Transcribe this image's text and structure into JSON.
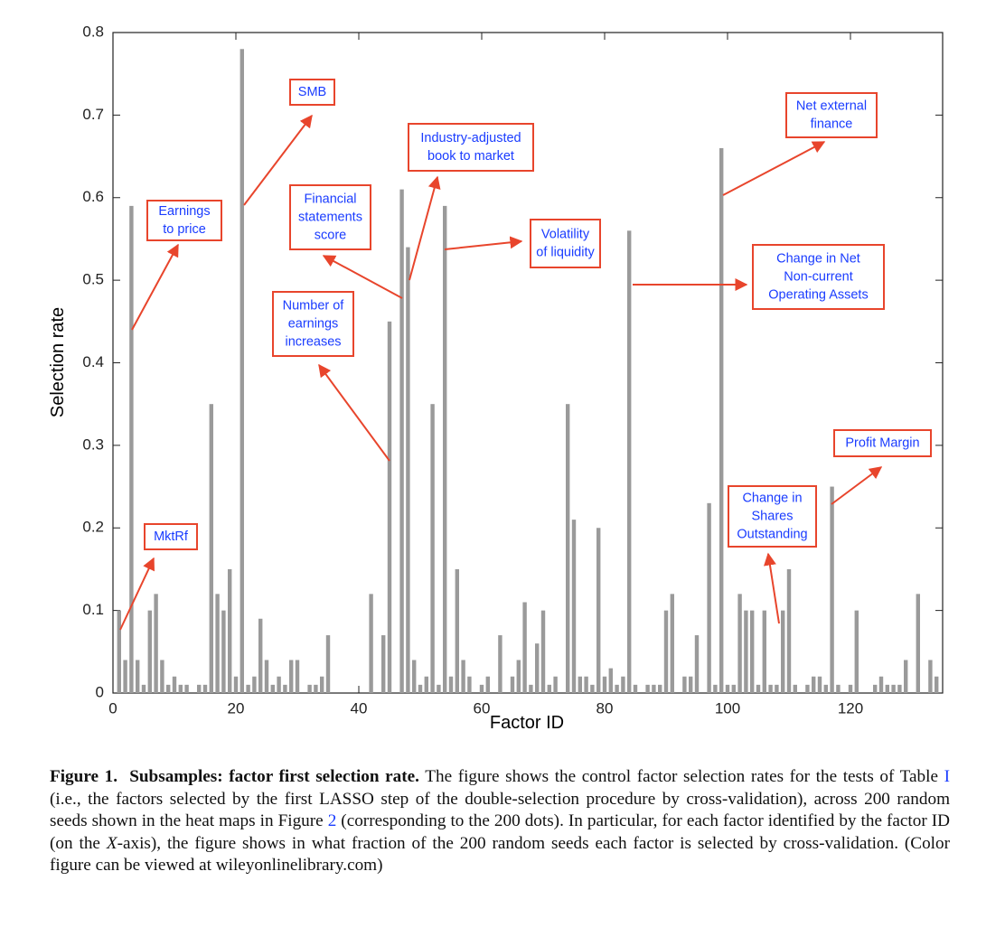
{
  "chart_data": {
    "type": "bar",
    "xlabel": "Factor ID",
    "ylabel": "Selection rate",
    "x": [
      1,
      2,
      3,
      4,
      5,
      6,
      7,
      8,
      9,
      10,
      11,
      12,
      13,
      14,
      15,
      16,
      17,
      18,
      19,
      20,
      21,
      22,
      23,
      24,
      25,
      26,
      27,
      28,
      29,
      30,
      31,
      32,
      33,
      34,
      35,
      36,
      37,
      38,
      39,
      40,
      41,
      42,
      43,
      44,
      45,
      46,
      47,
      48,
      49,
      50,
      51,
      52,
      53,
      54,
      55,
      56,
      57,
      58,
      59,
      60,
      61,
      62,
      63,
      64,
      65,
      66,
      67,
      68,
      69,
      70,
      71,
      72,
      73,
      74,
      75,
      76,
      77,
      78,
      79,
      80,
      81,
      82,
      83,
      84,
      85,
      86,
      87,
      88,
      89,
      90,
      91,
      92,
      93,
      94,
      95,
      96,
      97,
      98,
      99,
      100,
      101,
      102,
      103,
      104,
      105,
      106,
      107,
      108,
      109,
      110,
      111,
      112,
      113,
      114,
      115,
      116,
      117,
      118,
      119,
      120,
      121,
      122,
      123,
      124,
      125,
      126,
      127,
      128,
      129,
      130,
      131,
      132,
      133,
      134,
      135
    ],
    "values": [
      0.1,
      0.04,
      0.59,
      0.04,
      0.01,
      0.1,
      0.12,
      0.04,
      0.01,
      0.02,
      0.01,
      0.01,
      0,
      0.01,
      0.01,
      0.35,
      0.12,
      0.1,
      0.15,
      0.02,
      0.78,
      0.01,
      0.02,
      0.09,
      0.04,
      0.01,
      0.02,
      0.01,
      0.04,
      0.04,
      0,
      0.01,
      0.01,
      0.02,
      0.07,
      0,
      0,
      0,
      0,
      0,
      0,
      0.12,
      0,
      0.07,
      0.45,
      0,
      0.61,
      0.54,
      0.04,
      0.01,
      0.02,
      0.35,
      0.01,
      0.59,
      0.02,
      0.15,
      0.04,
      0.02,
      0,
      0.01,
      0.02,
      0,
      0.07,
      0,
      0.02,
      0.04,
      0.11,
      0.01,
      0.06,
      0.1,
      0.01,
      0.02,
      0,
      0.35,
      0.21,
      0.02,
      0.02,
      0.01,
      0.2,
      0.02,
      0.03,
      0.01,
      0.02,
      0.56,
      0.01,
      0,
      0.01,
      0.01,
      0.01,
      0.1,
      0.12,
      0,
      0.02,
      0.02,
      0.07,
      0,
      0.23,
      0.01,
      0.66,
      0.01,
      0.01,
      0.12,
      0.1,
      0.1,
      0.01,
      0.1,
      0.01,
      0.01,
      0.1,
      0.15,
      0.01,
      0,
      0.01,
      0.02,
      0.02,
      0.01,
      0.25,
      0.01,
      0,
      0.01,
      0.1,
      0,
      0,
      0.01,
      0.02,
      0.01,
      0.01,
      0.01,
      0.04,
      0,
      0.12,
      0,
      0.04,
      0.02,
      0
    ],
    "color": "#9a9a9a",
    "xlim": [
      0,
      135
    ],
    "xticks": [
      0,
      20,
      40,
      60,
      80,
      100,
      120
    ],
    "ylim": [
      0,
      0.8
    ],
    "yticks": [
      0,
      0.1,
      0.2,
      0.3,
      0.4,
      0.5,
      0.6,
      0.7,
      0.8
    ],
    "annotations": [
      [
        "MktRf"
      ],
      [
        "Earnings",
        "to price"
      ],
      [
        "SMB"
      ],
      [
        "Financial",
        "statements",
        "score"
      ],
      [
        "Industry-adjusted",
        "book to market"
      ],
      [
        "Number of",
        "earnings",
        "increases"
      ],
      [
        "Volatility",
        "of liquidity"
      ],
      [
        "Net external",
        "finance"
      ],
      [
        "Change in Net",
        "Non-current",
        "Operating Assets"
      ],
      [
        "Profit Margin"
      ],
      [
        "Change in",
        "Shares",
        "Outstanding"
      ]
    ]
  },
  "caption": {
    "label": "Figure 1.",
    "title": "Subsamples: factor first selection rate.",
    "text_1": "The figure shows the control factor selection rates for the tests of Table ",
    "ref_1": "I",
    "text_2": " (i.e., the factors selected by the first LASSO step of the double-selection procedure by cross-validation), across 200 random seeds shown in the heat maps in Figure ",
    "ref_2": "2",
    "text_3": " (corresponding to the 200 dots). In particular, for each factor identified by the factor ID (on the ",
    "italic": "X",
    "text_4": "-axis), the figure shows in what fraction of the 200 random seeds each factor is selected by cross-validation. (Color figure can be viewed at wileyonlinelibrary.com)"
  }
}
